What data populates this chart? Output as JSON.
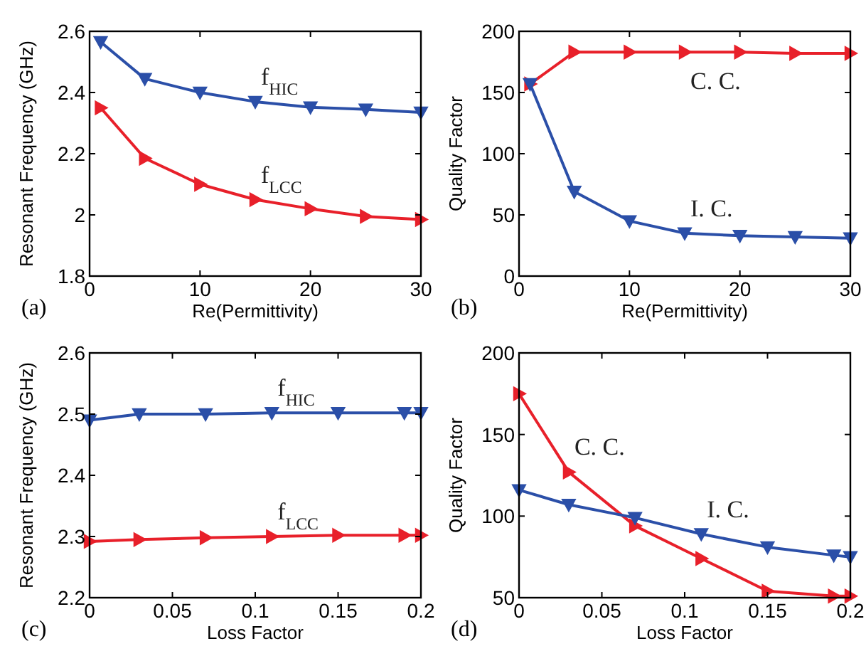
{
  "chart_data": [
    {
      "type": "line",
      "xlabel": "Re(Permittivity)",
      "ylabel": "Resonant Frequency (GHz)",
      "annotations": [
        "(a)"
      ],
      "x": [
        1,
        5,
        10,
        15,
        20,
        25,
        30
      ],
      "xlim": [
        0,
        30
      ],
      "xticks": [
        0,
        10,
        20,
        30
      ],
      "ylim": [
        1.8,
        2.6
      ],
      "yticks": [
        1.8,
        2,
        2.2,
        2.4,
        2.6
      ],
      "marker": "triangle",
      "line_style": "solid",
      "grid": false,
      "series": [
        {
          "name": "f$_{LCC}$",
          "color": "#e8202a",
          "values": [
            2.35,
            2.185,
            2.1,
            2.05,
            2.02,
            1.995,
            1.985
          ]
        },
        {
          "name": "f$_{HIC}$",
          "color": "#2b4fa8",
          "values": [
            2.565,
            2.445,
            2.4,
            2.37,
            2.352,
            2.345,
            2.335
          ]
        }
      ]
    },
    {
      "type": "line",
      "xlabel": "Re(Permittivity)",
      "ylabel": "Quality Factor",
      "annotations": [
        "(b)"
      ],
      "x": [
        1,
        5,
        10,
        15,
        20,
        25,
        30
      ],
      "xlim": [
        0,
        30
      ],
      "xticks": [
        0,
        10,
        20,
        30
      ],
      "ylim": [
        0,
        200
      ],
      "yticks": [
        0,
        50,
        100,
        150,
        200
      ],
      "marker": "triangle",
      "line_style": "solid",
      "grid": false,
      "series": [
        {
          "name": "C. C.",
          "color": "#e8202a",
          "values": [
            157,
            183,
            183,
            183,
            183,
            182,
            182
          ]
        },
        {
          "name": "I. C.",
          "color": "#2b4fa8",
          "values": [
            157,
            69,
            45,
            35,
            33,
            32,
            31
          ]
        }
      ]
    },
    {
      "type": "line",
      "xlabel": "Loss Factor",
      "ylabel": "Resonant Frequency (GHz)",
      "annotations": [
        "(c)"
      ],
      "x": [
        0,
        0.03,
        0.07,
        0.11,
        0.15,
        0.19,
        0.2
      ],
      "xlim": [
        0,
        0.2
      ],
      "xticks": [
        0,
        0.05,
        0.1,
        0.15,
        0.2
      ],
      "ylim": [
        2.2,
        2.6
      ],
      "yticks": [
        2.2,
        2.3,
        2.4,
        2.5,
        2.6
      ],
      "marker": "triangle",
      "line_style": "solid",
      "grid": false,
      "series": [
        {
          "name": "f$_{LCC}$",
          "color": "#e8202a",
          "values": [
            2.292,
            2.295,
            2.298,
            2.3,
            2.302,
            2.302,
            2.302
          ]
        },
        {
          "name": "f$_{HIC}$",
          "color": "#2b4fa8",
          "values": [
            2.49,
            2.5,
            2.5,
            2.502,
            2.502,
            2.502,
            2.502
          ]
        }
      ]
    },
    {
      "type": "line",
      "xlabel": "Loss Factor",
      "ylabel": "Quality Factor",
      "annotations": [
        "(d)"
      ],
      "x": [
        0,
        0.03,
        0.07,
        0.11,
        0.15,
        0.19,
        0.2
      ],
      "xlim": [
        0,
        0.2
      ],
      "xticks": [
        0,
        0.05,
        0.1,
        0.15,
        0.2
      ],
      "ylim": [
        50,
        200
      ],
      "yticks": [
        50,
        100,
        150,
        200
      ],
      "marker": "triangle",
      "line_style": "solid",
      "grid": false,
      "series": [
        {
          "name": "C. C.",
          "color": "#e8202a",
          "values": [
            175,
            127,
            94,
            74,
            54,
            51,
            51
          ]
        },
        {
          "name": "I. C.",
          "color": "#2b4fa8",
          "values": [
            116,
            107,
            99,
            89,
            81,
            76,
            75
          ]
        }
      ]
    }
  ]
}
